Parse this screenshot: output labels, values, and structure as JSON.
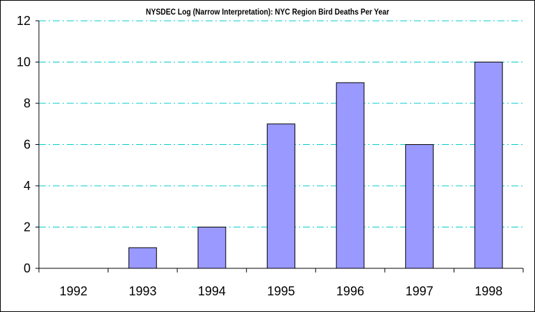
{
  "chart_data": {
    "type": "bar",
    "title": "NYSDEC Log (Narrow Interpretation): NYC Region Bird Deaths Per Year",
    "categories": [
      "1992",
      "1993",
      "1994",
      "1995",
      "1996",
      "1997",
      "1998"
    ],
    "values": [
      0,
      1,
      2,
      7,
      9,
      6,
      10
    ],
    "ylim": [
      0,
      12
    ],
    "yticks": [
      "0",
      "2",
      "4",
      "6",
      "8",
      "10",
      "12"
    ],
    "xlabel": "",
    "ylabel": "",
    "grid": true,
    "legend": "none"
  },
  "colors": {
    "bar_fill": "#9999ff",
    "bar_stroke": "#000000",
    "gridline": "#00cccc",
    "axis": "#000000",
    "background": "#ffffff"
  }
}
